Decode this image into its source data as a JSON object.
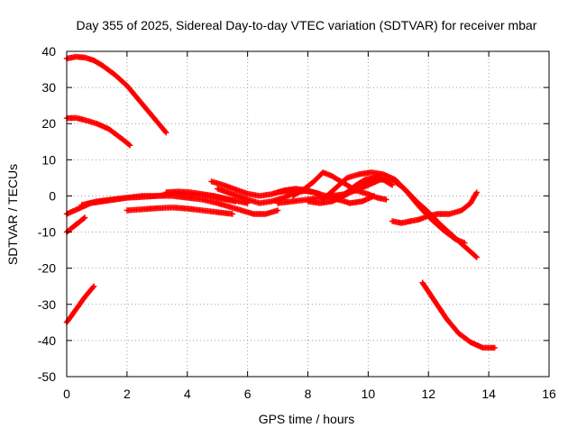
{
  "chart_data": {
    "type": "scatter",
    "title": "Day 355 of 2025, Sidereal Day-to-day VTEC variation (SDTVAR) for receiver mbar",
    "xlabel": "GPS time / hours",
    "ylabel": "SDTVAR / TECUs",
    "xlim": [
      0,
      16
    ],
    "ylim": [
      -50,
      40
    ],
    "x_ticks": [
      0,
      2,
      4,
      6,
      8,
      10,
      12,
      14,
      16
    ],
    "y_ticks": [
      -50,
      -40,
      -30,
      -20,
      -10,
      0,
      10,
      20,
      30,
      40
    ],
    "x_tick_labels": [
      "0",
      "2",
      "4",
      "6",
      "8",
      "10",
      "12",
      "14",
      "16"
    ],
    "y_tick_labels": [
      "-50",
      "-40",
      "-30",
      "-20",
      "-10",
      "0",
      "10",
      "20",
      "30",
      "40"
    ],
    "grid": true,
    "grid_style": "dotted",
    "marker": "plus",
    "series_color": "#ff0000",
    "series": [
      {
        "x": [
          0.0,
          0.3,
          0.6,
          0.9,
          1.2,
          1.6,
          2.0,
          2.4,
          2.8,
          3.1,
          3.3
        ],
        "y": [
          38.0,
          38.5,
          38.3,
          37.5,
          36.0,
          33.5,
          30.5,
          26.5,
          22.5,
          19.5,
          17.5
        ]
      },
      {
        "x": [
          0.0,
          0.3,
          0.6,
          1.0,
          1.4,
          1.8,
          2.1
        ],
        "y": [
          21.5,
          21.6,
          21.0,
          20.0,
          18.5,
          16.0,
          14.0
        ]
      },
      {
        "x": [
          0.0,
          0.3,
          0.6,
          0.9
        ],
        "y": [
          -35.0,
          -31.5,
          -28.0,
          -25.0
        ]
      },
      {
        "x": [
          0.0,
          0.3,
          0.6
        ],
        "y": [
          -10.0,
          -8.0,
          -6.0
        ]
      },
      {
        "x": [
          0.0,
          0.4,
          0.8,
          1.2,
          1.6,
          2.0,
          2.5,
          3.0,
          3.5,
          4.0,
          4.5,
          5.0,
          5.4,
          5.8,
          6.2,
          6.6,
          7.0
        ],
        "y": [
          -5.0,
          -3.5,
          -2.0,
          -1.5,
          -1.0,
          -0.5,
          0.0,
          0.0,
          0.0,
          -0.5,
          -1.0,
          -2.0,
          -3.0,
          -4.0,
          -5.0,
          -5.0,
          -4.0
        ]
      },
      {
        "x": [
          0.5,
          1.0,
          1.5,
          2.0,
          2.5,
          3.0,
          3.5,
          4.0,
          4.5,
          5.0,
          5.3,
          5.6
        ],
        "y": [
          -2.5,
          -1.5,
          -1.0,
          -0.5,
          -0.3,
          0.0,
          0.5,
          0.5,
          0.2,
          -0.5,
          -1.0,
          -1.5
        ]
      },
      {
        "x": [
          2.0,
          2.5,
          3.0,
          3.5,
          4.0,
          4.5,
          5.0,
          5.5
        ],
        "y": [
          -4.0,
          -3.7,
          -3.4,
          -3.2,
          -3.5,
          -4.0,
          -4.5,
          -5.0
        ]
      },
      {
        "x": [
          3.3,
          3.7,
          4.1,
          4.5,
          4.9,
          5.3,
          5.7,
          6.0
        ],
        "y": [
          1.0,
          1.2,
          1.0,
          0.5,
          0.0,
          -0.8,
          -1.5,
          -2.0
        ]
      },
      {
        "x": [
          4.8,
          5.2,
          5.6,
          6.0,
          6.4,
          6.8,
          7.2,
          7.6,
          8.0
        ],
        "y": [
          4.0,
          3.0,
          1.8,
          0.6,
          0.0,
          0.5,
          1.5,
          2.0,
          1.5
        ]
      },
      {
        "x": [
          5.0,
          5.5,
          6.0,
          6.4,
          6.8,
          7.2,
          7.6,
          8.0,
          8.4
        ],
        "y": [
          2.0,
          0.5,
          -1.0,
          -2.0,
          -1.5,
          -0.5,
          1.0,
          1.5,
          0.5
        ]
      },
      {
        "x": [
          7.0,
          7.5,
          8.0,
          8.4,
          8.8,
          9.2,
          9.6,
          10.0,
          10.4,
          10.8,
          11.2,
          11.6,
          12.0,
          12.4,
          12.8,
          13.2,
          13.6
        ],
        "y": [
          -2.0,
          -1.5,
          -1.0,
          -0.5,
          0.0,
          0.5,
          1.5,
          3.0,
          4.5,
          4.5,
          2.0,
          -1.5,
          -4.5,
          -8.0,
          -11.0,
          -14.0,
          -17.0
        ]
      },
      {
        "x": [
          7.0,
          7.4,
          7.8,
          8.2,
          8.6,
          9.0,
          9.4,
          9.8,
          10.2
        ],
        "y": [
          1.0,
          1.5,
          1.5,
          1.0,
          0.0,
          -1.0,
          -2.0,
          -1.5,
          0.0
        ]
      },
      {
        "x": [
          7.5,
          7.9,
          8.2,
          8.5,
          8.8,
          9.2,
          9.6,
          10.0,
          10.3,
          10.6
        ],
        "y": [
          0.0,
          2.0,
          4.0,
          6.5,
          5.5,
          3.5,
          1.5,
          0.5,
          -0.5,
          -1.0
        ]
      },
      {
        "x": [
          8.5,
          8.9,
          9.3,
          9.7,
          10.1,
          10.5,
          10.9,
          11.3,
          11.7,
          12.1,
          12.5,
          12.9,
          13.2
        ],
        "y": [
          -1.0,
          2.0,
          5.0,
          6.0,
          6.5,
          6.0,
          4.5,
          1.0,
          -3.0,
          -6.5,
          -9.5,
          -12.0,
          -13.0
        ]
      },
      {
        "x": [
          8.0,
          8.4,
          8.8,
          9.2,
          9.6,
          10.0,
          10.4
        ],
        "y": [
          -1.5,
          -2.0,
          -1.5,
          0.0,
          2.0,
          4.0,
          6.0
        ]
      },
      {
        "x": [
          9.0,
          9.3,
          9.6,
          9.9,
          10.2,
          10.5,
          10.8
        ],
        "y": [
          -1.0,
          1.0,
          3.0,
          4.5,
          5.0,
          4.5,
          3.0
        ]
      },
      {
        "x": [
          10.8,
          11.1,
          11.4,
          11.7,
          12.0,
          12.3,
          12.7,
          13.1,
          13.4,
          13.6
        ],
        "y": [
          -7.0,
          -7.5,
          -7.0,
          -6.5,
          -5.5,
          -5.0,
          -5.0,
          -4.0,
          -2.0,
          1.0
        ]
      },
      {
        "x": [
          11.8,
          12.2,
          12.6,
          13.0,
          13.4,
          13.8,
          14.2
        ],
        "y": [
          -24.0,
          -29.0,
          -34.0,
          -38.0,
          -40.5,
          -42.0,
          -42.0
        ]
      }
    ]
  }
}
